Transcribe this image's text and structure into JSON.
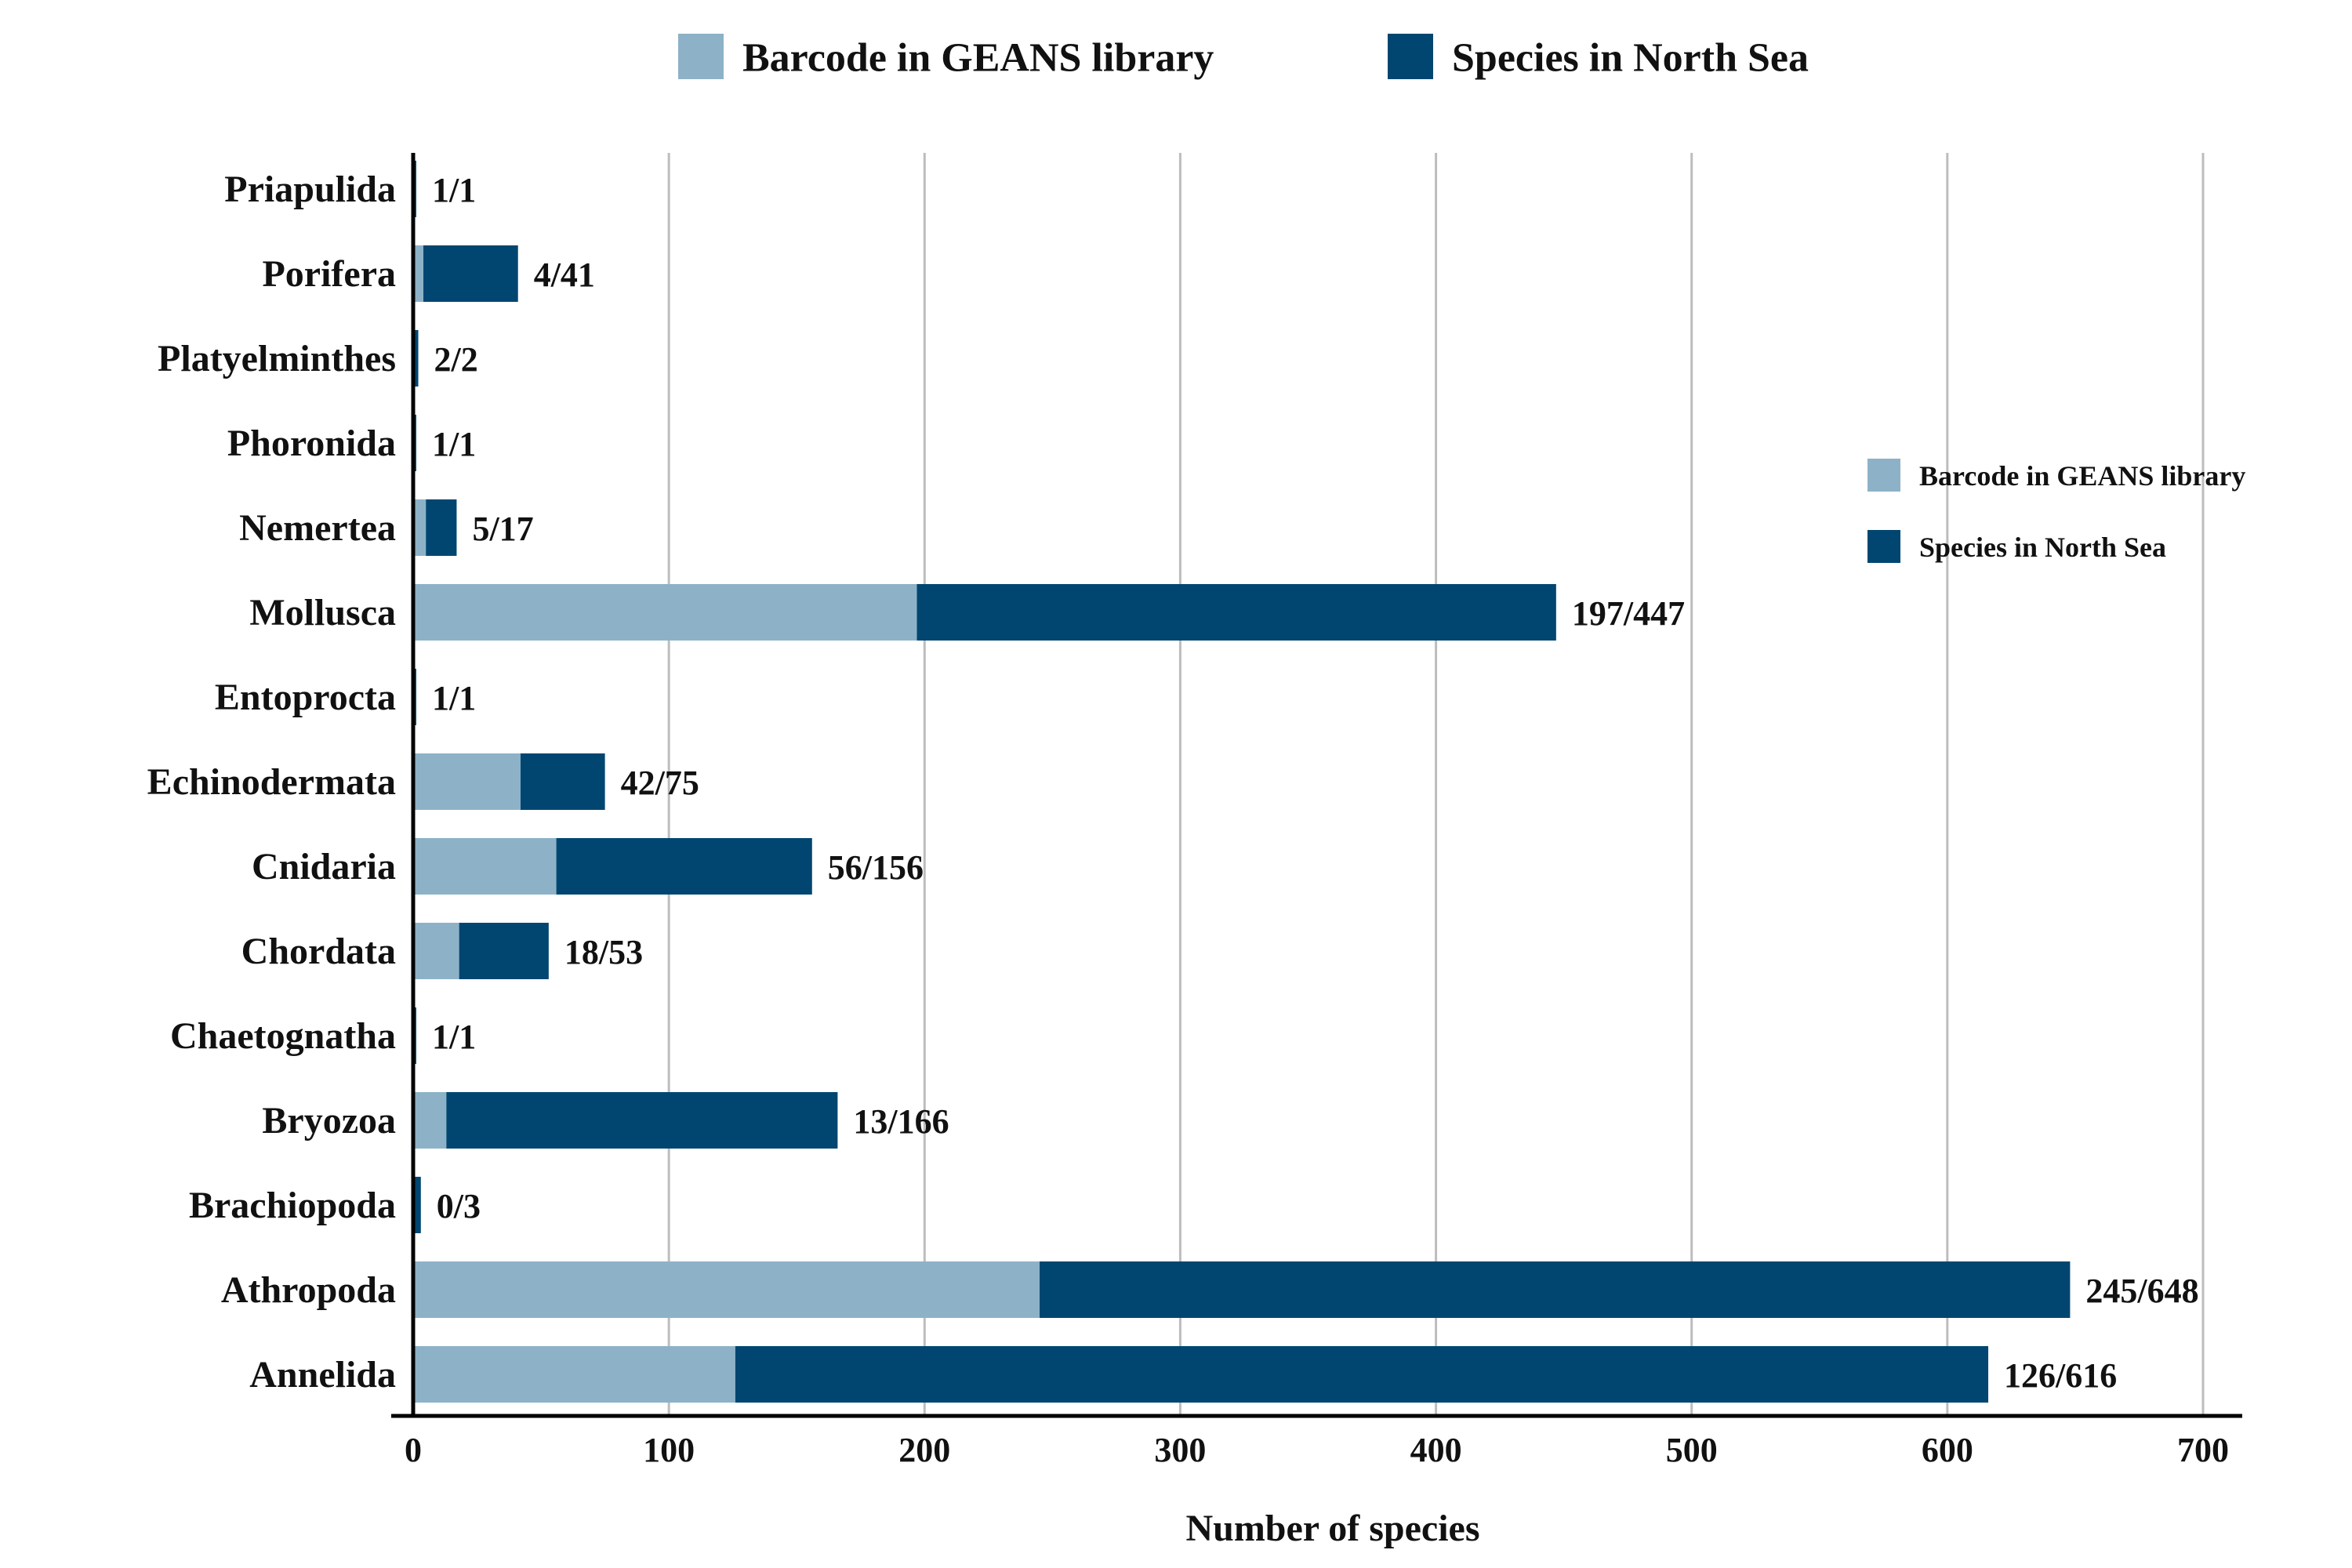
{
  "colors": {
    "barcode": "#8db2c7",
    "species": "#004670",
    "grid": "#bdbdbd",
    "axis": "#000000"
  },
  "chart_data": {
    "type": "bar",
    "orientation": "horizontal",
    "stacked": "overlay",
    "xlabel": "Number of species",
    "ylabel": "",
    "xlim": [
      0,
      700
    ],
    "xticks": [
      0,
      100,
      200,
      300,
      400,
      500,
      600,
      700
    ],
    "grid": true,
    "categories": [
      "Priapulida",
      "Porifera",
      "Platyelminthes",
      "Phoronida",
      "Nemertea",
      "Mollusca",
      "Entoprocta",
      "Echinodermata",
      "Cnidaria",
      "Chordata",
      "Chaetognatha",
      "Bryozoa",
      "Brachiopoda",
      "Athropoda",
      "Annelida"
    ],
    "series": [
      {
        "name": "Barcode in GEANS library",
        "color": "#8db2c7",
        "values": [
          1,
          4,
          2,
          1,
          5,
          197,
          1,
          42,
          56,
          18,
          1,
          13,
          0,
          245,
          126
        ]
      },
      {
        "name": "Species in North Sea",
        "color": "#004670",
        "values": [
          1,
          41,
          2,
          1,
          17,
          447,
          1,
          75,
          156,
          53,
          1,
          166,
          3,
          648,
          616
        ]
      }
    ],
    "data_labels": [
      "1/1",
      "4/41",
      "2/2",
      "1/1",
      "5/17",
      "197/447",
      "1/1",
      "42/75",
      "56/156",
      "18/53",
      "1/1",
      "13/166",
      "0/3",
      "245/648",
      "126/616"
    ],
    "legends": [
      {
        "placement": "top-center",
        "items": [
          "Barcode in GEANS library",
          "Species in North Sea"
        ]
      },
      {
        "placement": "right",
        "items": [
          "Barcode in GEANS library",
          "Species in North Sea"
        ]
      }
    ]
  }
}
